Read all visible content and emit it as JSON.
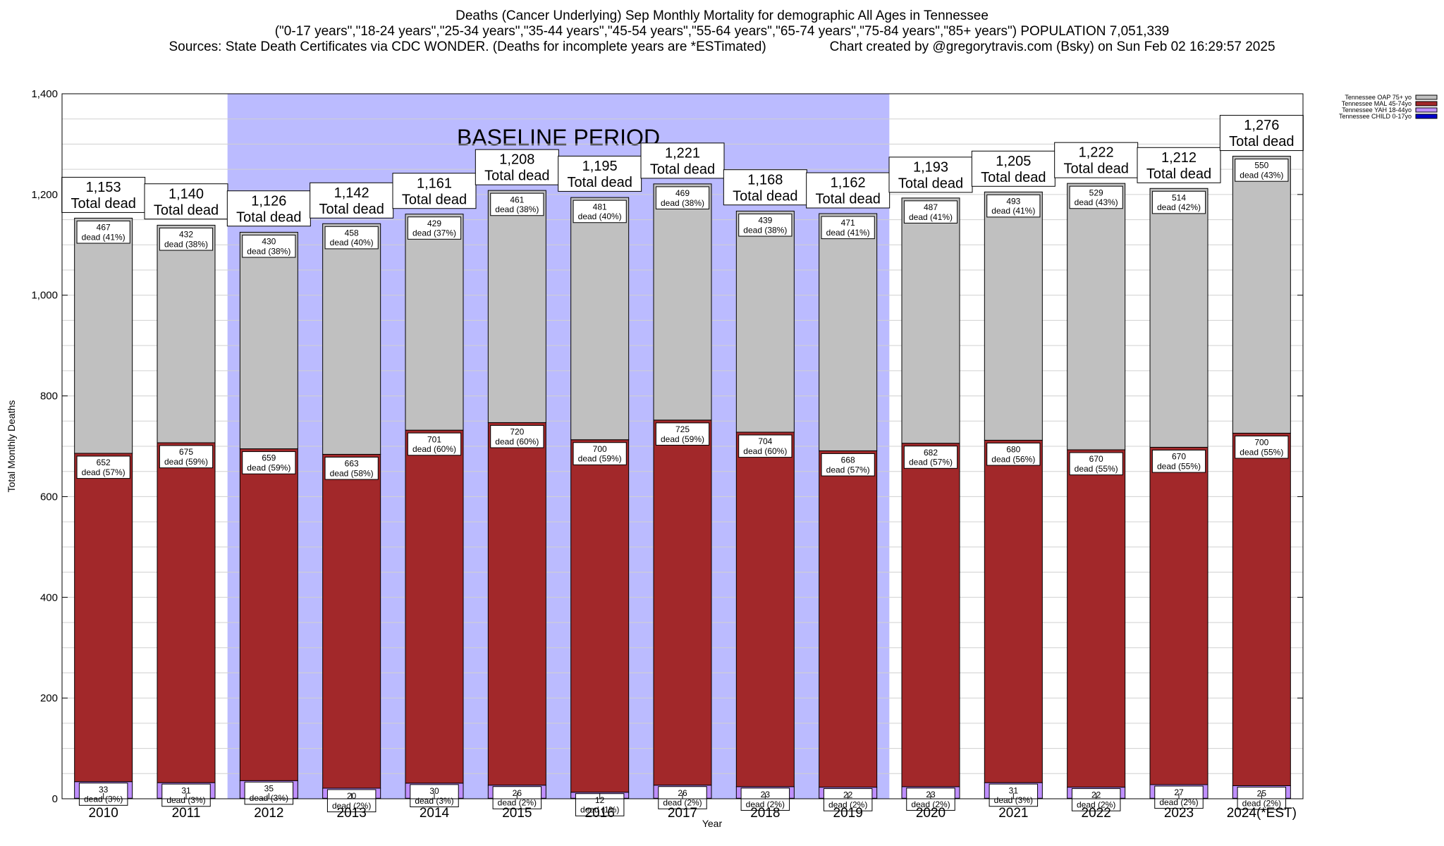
{
  "header": {
    "title": "Deaths (Cancer Underlying) Sep Monthly Mortality for demographic All Ages in Tennessee",
    "subtitle": "(\"0-17 years\",\"18-24 years\",\"25-34 years\",\"35-44 years\",\"45-54 years\",\"55-64 years\",\"65-74 years\",\"75-84 years\",\"85+ years\") POPULATION 7,051,339",
    "sources": "Sources: State Death Certificates via CDC WONDER. (Deaths for incomplete years are *ESTimated)",
    "credit": "Chart created by @gregorytravis.com (Bsky) on Sun Feb 02 16:29:57 2025"
  },
  "chart_data": {
    "type": "bar",
    "stacked": true,
    "title": "Deaths (Cancer Underlying) Sep Monthly Mortality for demographic All Ages in Tennessee",
    "xlabel": "Year",
    "ylabel": "Total Monthly Deaths",
    "ylim": [
      0,
      1400
    ],
    "yticks": [
      0,
      200,
      400,
      600,
      800,
      1000,
      1200,
      1400
    ],
    "ytick_labels": [
      "0",
      "200",
      "400",
      "600",
      "800",
      "1,000",
      "1,200",
      "1,400"
    ],
    "grid": true,
    "legend_position": "top-right, outside plot",
    "categories": [
      "2010",
      "2011",
      "2012",
      "2013",
      "2014",
      "2015",
      "2016",
      "2017",
      "2018",
      "2019",
      "2020",
      "2021",
      "2022",
      "2023",
      "2024(*EST)"
    ],
    "baseline_period": {
      "label": "BASELINE PERIOD",
      "start": "2012",
      "end": "2019",
      "color": "#bbbbff"
    },
    "total_label_suffix": "Total dead",
    "dead_word": "dead",
    "series": [
      {
        "name": "Tennessee CHILD 0-17yo",
        "color": "#0000cc",
        "values": [
          1,
          1,
          1,
          1,
          1,
          1,
          1,
          1,
          1,
          1,
          1,
          1,
          1,
          1,
          1
        ],
        "labels": null
      },
      {
        "name": "Tennessee YAH 18-44yo",
        "color": "#bf8fff",
        "values": [
          33,
          31,
          35,
          20,
          30,
          26,
          12,
          26,
          23,
          22,
          23,
          31,
          22,
          27,
          25
        ],
        "labels": [
          "33",
          "31",
          "35",
          "20",
          "30",
          "26",
          "12",
          "26",
          "23",
          "22",
          "23",
          "31",
          "22",
          "27",
          "25"
        ],
        "pct": [
          "3%",
          "3%",
          "3%",
          "2%",
          "3%",
          "2%",
          "1%",
          "2%",
          "2%",
          "2%",
          "2%",
          "3%",
          "2%",
          "2%",
          "2%"
        ]
      },
      {
        "name": "Tennessee MAL 45-74yo",
        "color": "#a2282a",
        "values": [
          652,
          675,
          659,
          663,
          701,
          720,
          700,
          725,
          704,
          668,
          682,
          680,
          670,
          670,
          700
        ],
        "labels": [
          "652",
          "675",
          "659",
          "663",
          "701",
          "720",
          "700",
          "725",
          "704",
          "668",
          "682",
          "680",
          "670",
          "670",
          "700"
        ],
        "pct": [
          "57%",
          "59%",
          "59%",
          "58%",
          "60%",
          "60%",
          "59%",
          "59%",
          "60%",
          "57%",
          "57%",
          "56%",
          "55%",
          "55%",
          "55%"
        ]
      },
      {
        "name": "Tennessee OAP 75+ yo",
        "color": "#c0c0c0",
        "values": [
          467,
          432,
          430,
          458,
          429,
          461,
          481,
          469,
          439,
          471,
          487,
          493,
          529,
          514,
          550
        ],
        "labels": [
          "467",
          "432",
          "430",
          "458",
          "429",
          "461",
          "481",
          "469",
          "439",
          "471",
          "487",
          "493",
          "529",
          "514",
          "550"
        ],
        "pct": [
          "41%",
          "38%",
          "38%",
          "40%",
          "37%",
          "38%",
          "40%",
          "38%",
          "38%",
          "41%",
          "41%",
          "41%",
          "43%",
          "42%",
          "43%"
        ]
      }
    ],
    "totals": [
      1153,
      1140,
      1126,
      1142,
      1161,
      1208,
      1195,
      1221,
      1168,
      1162,
      1193,
      1205,
      1222,
      1212,
      1276
    ],
    "total_labels": [
      "1,153",
      "1,140",
      "1,126",
      "1,142",
      "1,161",
      "1,208",
      "1,195",
      "1,221",
      "1,168",
      "1,162",
      "1,193",
      "1,205",
      "1,222",
      "1,212",
      "1,276"
    ]
  }
}
